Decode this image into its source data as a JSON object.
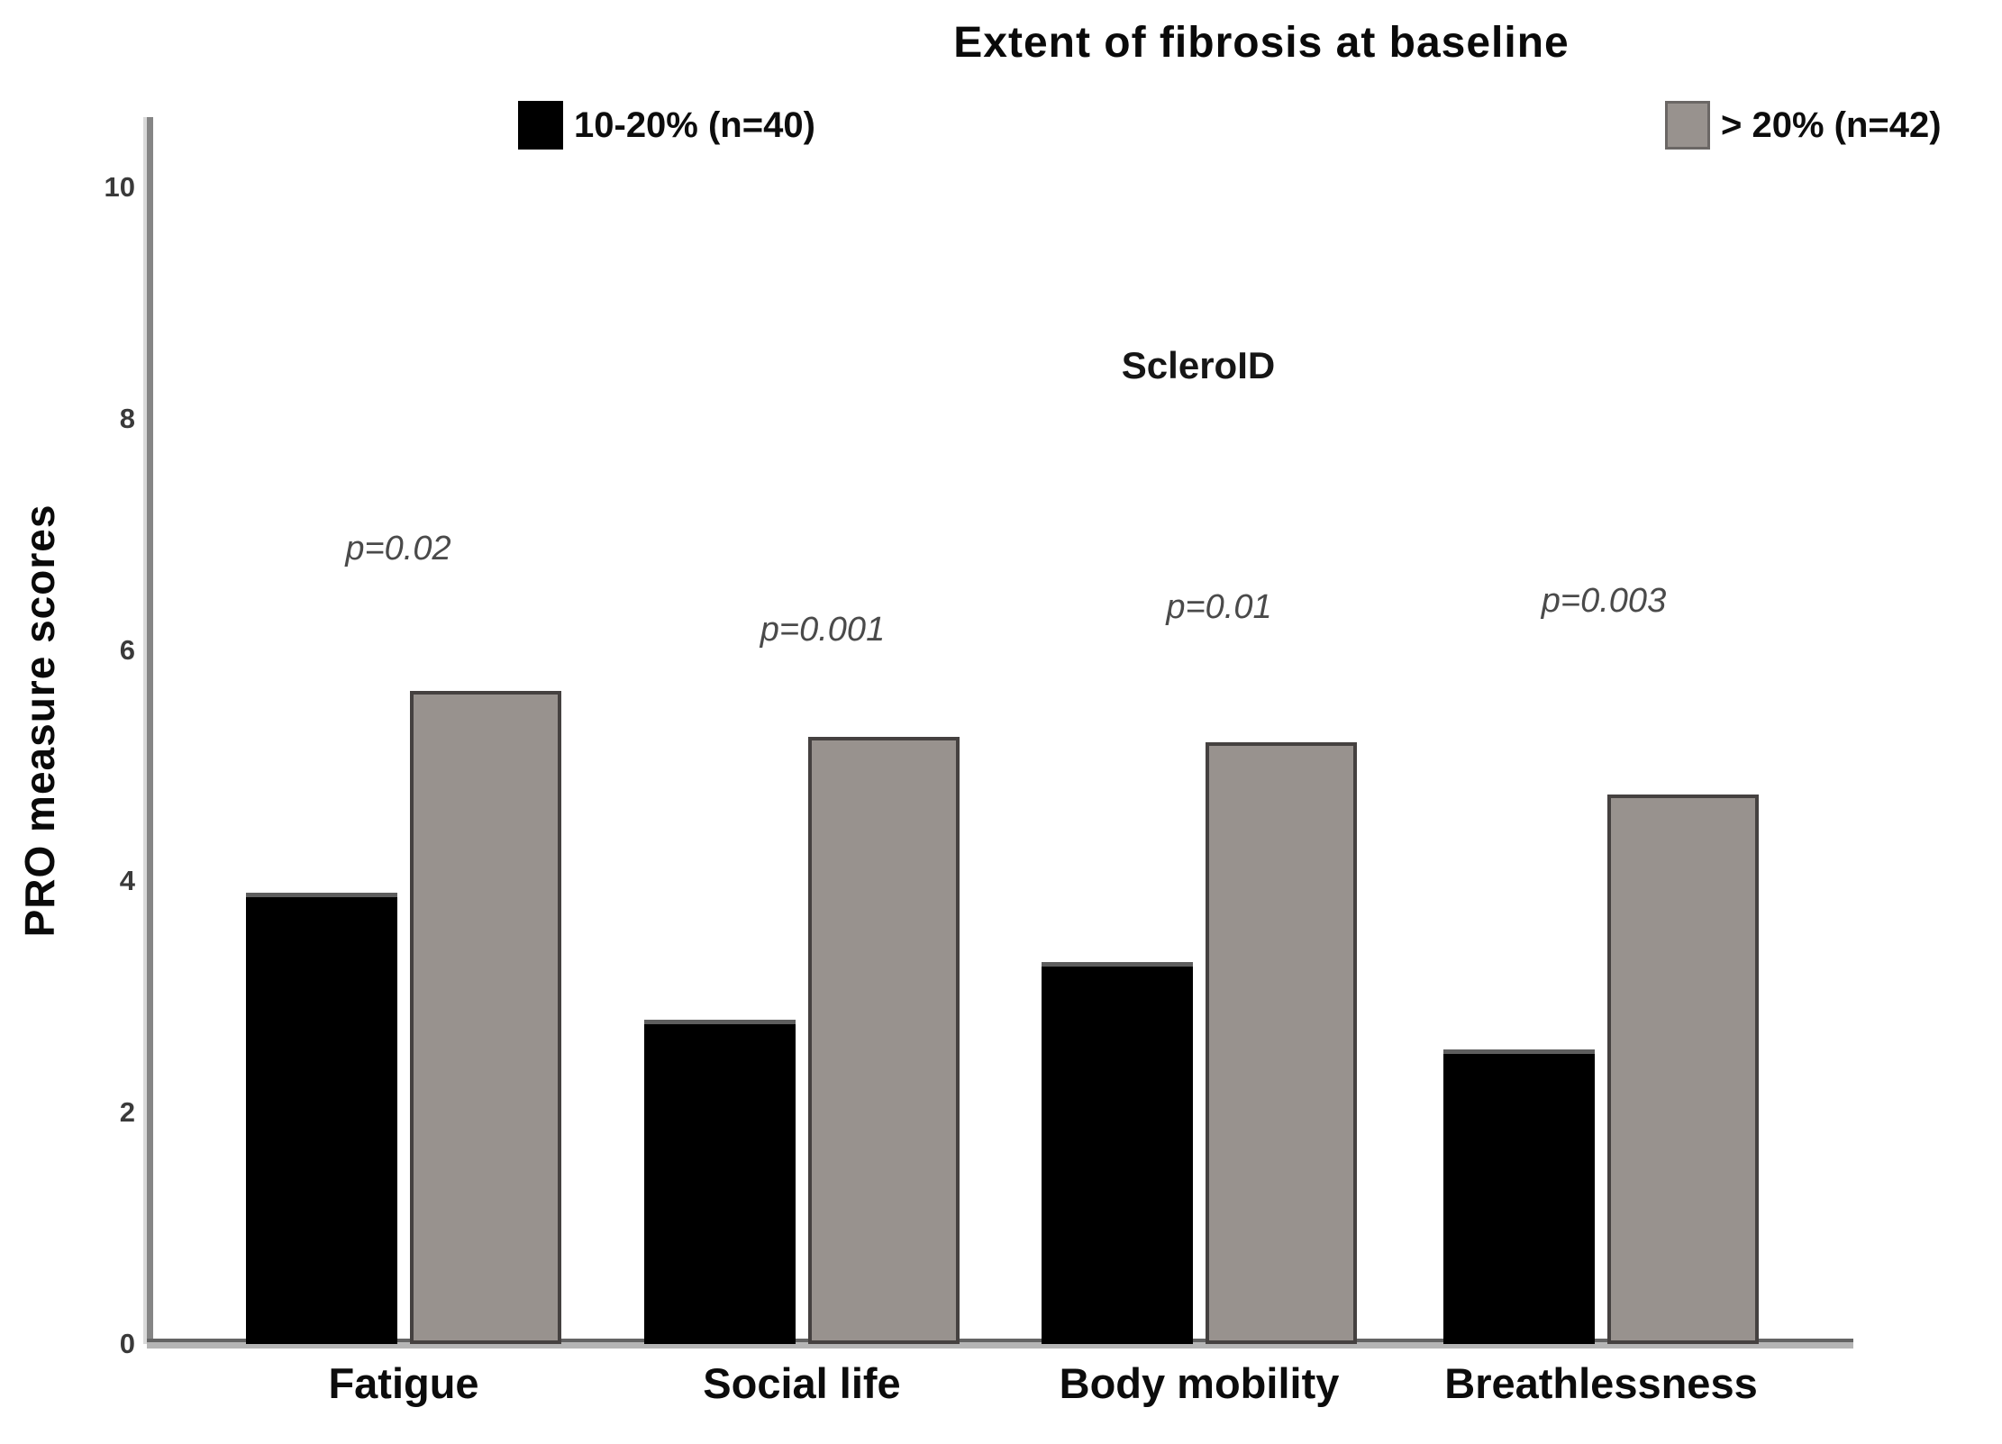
{
  "chart_data": {
    "type": "bar",
    "title": "Extent of fibrosis at baseline",
    "subtitle": "ScleroID",
    "xlabel": "",
    "ylabel": "PRO measure scores",
    "ylim": [
      0,
      10
    ],
    "yticks": [
      "0",
      "2",
      "4",
      "6",
      "8",
      "10"
    ],
    "grid": false,
    "legend_position": "top",
    "categories": [
      "Fatigue",
      "Social life",
      "Body mobility",
      "Breathlessness"
    ],
    "series": [
      {
        "name": "10-20% (n=40)",
        "color": "#000000",
        "values": [
          3.9,
          2.8,
          3.3,
          2.55
        ]
      },
      {
        "name": "> 20% (n=42)",
        "color": "#98928e",
        "values": [
          5.65,
          5.25,
          5.2,
          4.75
        ]
      }
    ],
    "p_values": [
      "p=0.02",
      "p=0.001",
      "p=0.01",
      "p=0.003"
    ],
    "p_value_heights_units": [
      6.85,
      6.15,
      6.35,
      6.4
    ]
  },
  "colors": {
    "gray_bar_fill": "#98928e",
    "gray_bar_border": "#454140",
    "black_bar_fill": "#000000",
    "axis_line": "#858585",
    "p_value_text": "#4a4a4a"
  }
}
